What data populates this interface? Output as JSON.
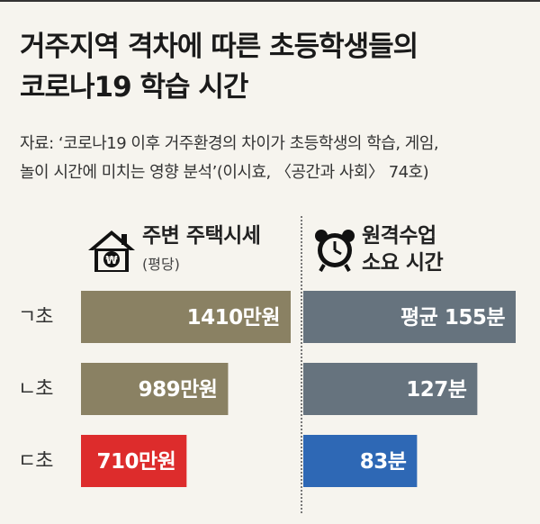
{
  "title_line1": "거주지역 격차에 따른 초등학생들의",
  "title_line2": "코로나19 학습 시간",
  "source_line1": "자료: ‘코로나19 이후 거주환경의 차이가 초등학생의 학습, 게임,",
  "source_line2": "놀이 시간에 미치는 영향 분석’(이시효, 〈공간과 사회〉 74호)",
  "rows": [
    "ㄱ초",
    "ㄴ초",
    "ㄷ초"
  ],
  "colors": {
    "housing_bar": "#8a8163",
    "highlight_bar": "#dd2c2c",
    "remote_bar": "#66737e",
    "remote_highlight": "#2e68b5"
  },
  "chart_data": [
    {
      "type": "bar",
      "orientation": "horizontal",
      "title": "주변 주택시세",
      "subtitle": "(평당)",
      "icon": "house-won-icon",
      "categories": [
        "ㄱ초",
        "ㄴ초",
        "ㄷ초"
      ],
      "values": [
        1410,
        989,
        710
      ],
      "value_labels": [
        "1410만원",
        "989만원",
        "710만원"
      ],
      "unit": "만원"
    },
    {
      "type": "bar",
      "orientation": "horizontal",
      "title_line1": "원격수업",
      "title_line2": "소요 시간",
      "icon": "alarm-clock-icon",
      "categories": [
        "ㄱ초",
        "ㄴ초",
        "ㄷ초"
      ],
      "values": [
        155,
        127,
        83
      ],
      "value_labels": [
        "평균 155분",
        "127분",
        "83분"
      ],
      "unit": "분"
    }
  ]
}
